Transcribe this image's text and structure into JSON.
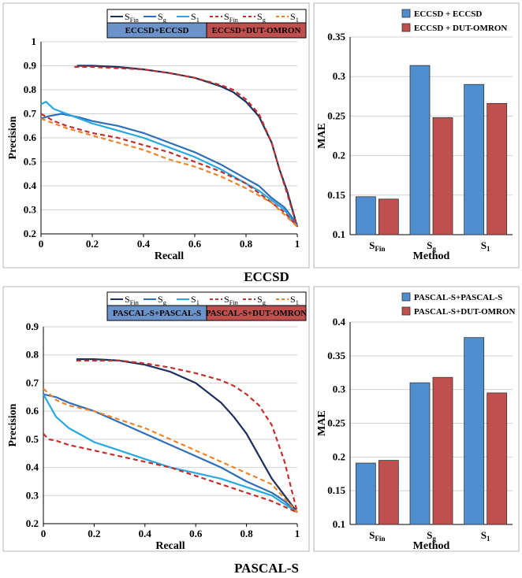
{
  "sections": [
    {
      "title": "ECCSD"
    },
    {
      "title": "PASCAL-S"
    }
  ],
  "chart_data": [
    {
      "type": "line",
      "xlabel": "Recall",
      "ylabel": "Precision",
      "xlim": [
        0,
        1
      ],
      "ylim": [
        0.2,
        1
      ],
      "xticks": [
        "0",
        "0.2",
        "0.4",
        "0.6",
        "0.8",
        "1"
      ],
      "yticks": [
        "0.2",
        "0.3",
        "0.4",
        "0.5",
        "0.6",
        "0.7",
        "0.8",
        "0.9",
        "1"
      ],
      "grid": true,
      "legend_boxes": [
        "ECCSD+ECCSD",
        "ECCSD+DUT-OMRON"
      ],
      "legend_box_colors": [
        "#6c93c9",
        "#c0504d"
      ],
      "series": [
        {
          "name": "S_Fin",
          "color": "#1f2f5c",
          "dash": false,
          "x": [
            0.14,
            0.2,
            0.3,
            0.4,
            0.5,
            0.6,
            0.7,
            0.75,
            0.8,
            0.85,
            0.9,
            0.93,
            0.96,
            1.0
          ],
          "y": [
            0.9,
            0.9,
            0.895,
            0.885,
            0.87,
            0.85,
            0.815,
            0.79,
            0.75,
            0.69,
            0.58,
            0.47,
            0.38,
            0.23
          ]
        },
        {
          "name": "S_g",
          "color": "#2e6fb5",
          "dash": false,
          "x": [
            0.0,
            0.03,
            0.08,
            0.15,
            0.2,
            0.3,
            0.4,
            0.5,
            0.6,
            0.7,
            0.8,
            0.85,
            0.9,
            0.95,
            1.0
          ],
          "y": [
            0.68,
            0.69,
            0.7,
            0.685,
            0.67,
            0.65,
            0.62,
            0.58,
            0.54,
            0.49,
            0.43,
            0.4,
            0.35,
            0.31,
            0.24
          ]
        },
        {
          "name": "S_1",
          "color": "#27a8e0",
          "dash": false,
          "x": [
            0.0,
            0.02,
            0.05,
            0.1,
            0.2,
            0.3,
            0.4,
            0.5,
            0.6,
            0.7,
            0.8,
            0.85,
            0.9,
            0.95,
            1.0
          ],
          "y": [
            0.74,
            0.75,
            0.72,
            0.7,
            0.66,
            0.63,
            0.6,
            0.56,
            0.52,
            0.47,
            0.41,
            0.38,
            0.34,
            0.3,
            0.23
          ]
        },
        {
          "name": "S_Fin",
          "color": "#c0302c",
          "dash": true,
          "x": [
            0.13,
            0.2,
            0.3,
            0.4,
            0.5,
            0.6,
            0.7,
            0.75,
            0.8,
            0.85,
            0.9,
            0.93,
            0.96,
            1.0
          ],
          "y": [
            0.895,
            0.895,
            0.89,
            0.885,
            0.87,
            0.85,
            0.82,
            0.8,
            0.76,
            0.7,
            0.58,
            0.47,
            0.37,
            0.23
          ]
        },
        {
          "name": "S_g",
          "color": "#c0302c",
          "dash": true,
          "x": [
            0.0,
            0.05,
            0.1,
            0.2,
            0.3,
            0.4,
            0.5,
            0.6,
            0.7,
            0.8,
            0.85,
            0.9,
            0.95,
            1.0
          ],
          "y": [
            0.7,
            0.67,
            0.65,
            0.62,
            0.6,
            0.57,
            0.54,
            0.5,
            0.46,
            0.41,
            0.37,
            0.33,
            0.29,
            0.23
          ]
        },
        {
          "name": "S_1",
          "color": "#f0822a",
          "dash": true,
          "x": [
            0.0,
            0.05,
            0.1,
            0.2,
            0.3,
            0.4,
            0.5,
            0.6,
            0.7,
            0.8,
            0.85,
            0.9,
            0.95,
            1.0
          ],
          "y": [
            0.68,
            0.66,
            0.64,
            0.61,
            0.58,
            0.55,
            0.51,
            0.48,
            0.44,
            0.39,
            0.36,
            0.33,
            0.28,
            0.23
          ]
        }
      ]
    },
    {
      "type": "bar",
      "xlabel": "Method",
      "ylabel": "MAE",
      "ylim": [
        0.1,
        0.35
      ],
      "yticks": [
        "0.1",
        "0.15",
        "0.2",
        "0.25",
        "0.3",
        "0.35"
      ],
      "grid": true,
      "categories": [
        "S_Fin",
        "S_g",
        "S_1"
      ],
      "series": [
        {
          "name": "ECCSD + ECCSD",
          "color": "#4f8fd0",
          "values": [
            0.148,
            0.314,
            0.29
          ]
        },
        {
          "name": "ECCSD + DUT-OMRON",
          "color": "#c0504d",
          "values": [
            0.145,
            0.248,
            0.266
          ]
        }
      ]
    },
    {
      "type": "line",
      "xlabel": "Recall",
      "ylabel": "Precision",
      "xlim": [
        0,
        1
      ],
      "ylim": [
        0.2,
        0.9
      ],
      "xticks": [
        "0",
        "0.2",
        "0.4",
        "0.6",
        "0.8",
        "1"
      ],
      "yticks": [
        "0.2",
        "0.3",
        "0.4",
        "0.5",
        "0.6",
        "0.7",
        "0.8",
        "0.9"
      ],
      "grid": true,
      "legend_boxes": [
        "PASCAL-S+PASCAL-S",
        "PASCAL-S+DUT-OMRON"
      ],
      "legend_box_colors": [
        "#6c93c9",
        "#c0504d"
      ],
      "series": [
        {
          "name": "S_Fin",
          "color": "#1f2f5c",
          "dash": false,
          "x": [
            0.13,
            0.2,
            0.3,
            0.4,
            0.5,
            0.6,
            0.7,
            0.75,
            0.8,
            0.85,
            0.9,
            0.95,
            1.0
          ],
          "y": [
            0.785,
            0.785,
            0.78,
            0.765,
            0.74,
            0.7,
            0.63,
            0.58,
            0.52,
            0.44,
            0.36,
            0.3,
            0.24
          ]
        },
        {
          "name": "S_g",
          "color": "#2e6fb5",
          "dash": false,
          "x": [
            0.0,
            0.05,
            0.1,
            0.2,
            0.3,
            0.4,
            0.5,
            0.6,
            0.7,
            0.8,
            0.9,
            0.95,
            1.0
          ],
          "y": [
            0.66,
            0.65,
            0.63,
            0.6,
            0.56,
            0.52,
            0.48,
            0.44,
            0.4,
            0.35,
            0.31,
            0.28,
            0.24
          ]
        },
        {
          "name": "S_1",
          "color": "#27a8e0",
          "dash": false,
          "x": [
            0.0,
            0.05,
            0.1,
            0.2,
            0.3,
            0.4,
            0.5,
            0.6,
            0.7,
            0.8,
            0.9,
            0.95,
            1.0
          ],
          "y": [
            0.66,
            0.58,
            0.54,
            0.49,
            0.46,
            0.43,
            0.4,
            0.38,
            0.36,
            0.33,
            0.3,
            0.27,
            0.24
          ]
        },
        {
          "name": "S_Fin",
          "color": "#c0302c",
          "dash": true,
          "x": [
            0.13,
            0.2,
            0.3,
            0.4,
            0.5,
            0.6,
            0.7,
            0.75,
            0.8,
            0.85,
            0.9,
            0.95,
            1.0
          ],
          "y": [
            0.78,
            0.78,
            0.78,
            0.77,
            0.755,
            0.735,
            0.71,
            0.69,
            0.66,
            0.62,
            0.55,
            0.42,
            0.24
          ]
        },
        {
          "name": "S_g",
          "color": "#c0302c",
          "dash": true,
          "x": [
            0.0,
            0.02,
            0.05,
            0.1,
            0.2,
            0.3,
            0.4,
            0.5,
            0.6,
            0.7,
            0.8,
            0.9,
            0.95,
            1.0
          ],
          "y": [
            0.52,
            0.5,
            0.495,
            0.48,
            0.46,
            0.44,
            0.42,
            0.4,
            0.37,
            0.34,
            0.31,
            0.28,
            0.26,
            0.24
          ]
        },
        {
          "name": "S_1",
          "color": "#f0822a",
          "dash": true,
          "x": [
            0.0,
            0.05,
            0.1,
            0.2,
            0.3,
            0.4,
            0.5,
            0.6,
            0.7,
            0.8,
            0.9,
            0.95,
            1.0
          ],
          "y": [
            0.68,
            0.64,
            0.62,
            0.6,
            0.57,
            0.54,
            0.5,
            0.46,
            0.42,
            0.38,
            0.34,
            0.29,
            0.24
          ]
        }
      ]
    },
    {
      "type": "bar",
      "xlabel": "Method",
      "ylabel": "MAE",
      "ylim": [
        0.1,
        0.4
      ],
      "yticks": [
        "0.1",
        "0.15",
        "0.2",
        "0.25",
        "0.3",
        "0.35",
        "0.4"
      ],
      "grid": true,
      "categories": [
        "S_Fin",
        "S_g",
        "S_1"
      ],
      "series": [
        {
          "name": "PASCAL-S+PASCAL-S",
          "color": "#4f8fd0",
          "values": [
            0.191,
            0.31,
            0.377
          ]
        },
        {
          "name": "PASCAL-S+DUT-OMRON",
          "color": "#c0504d",
          "values": [
            0.195,
            0.318,
            0.295
          ]
        }
      ]
    }
  ]
}
